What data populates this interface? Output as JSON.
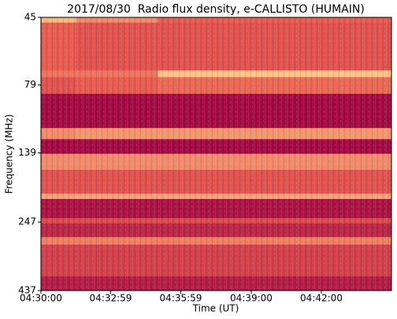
{
  "chart_data": {
    "type": "spectrogram",
    "title": "2017/08/30  Radio flux density, e-CALLISTO (HUMAIN)",
    "x_label": "Time (UT)",
    "y_label": "Frequency (MHz)",
    "xlim": [
      "04:30:00",
      "04:45:00"
    ],
    "xticks": [
      "04:30:00",
      "04:32:59",
      "04:35:59",
      "04:39:00",
      "04:42:00"
    ],
    "ylim": [
      45,
      437
    ],
    "yticks": [
      45,
      79,
      139,
      247,
      437
    ],
    "y_log": true,
    "y_inverted": true,
    "time_edges": [
      "04:30:00",
      "04:31:30",
      "04:35:00",
      "04:45:00"
    ],
    "frequency_edges": [
      45,
      47,
      70,
      74,
      85,
      113,
      124,
      140,
      160,
      195,
      204,
      239,
      250,
      280,
      298,
      388,
      437
    ],
    "intensity": [
      [
        0.9,
        0.7,
        0.5
      ],
      [
        0.5,
        0.45,
        0.45
      ],
      [
        0.6,
        0.6,
        0.95
      ],
      [
        0.45,
        0.5,
        0.55
      ],
      [
        0.05,
        0.05,
        0.05
      ],
      [
        0.7,
        0.75,
        0.75
      ],
      [
        0.05,
        0.05,
        0.05
      ],
      [
        0.7,
        0.7,
        0.7
      ],
      [
        0.45,
        0.45,
        0.45
      ],
      [
        0.8,
        0.8,
        0.8
      ],
      [
        0.1,
        0.1,
        0.1
      ],
      [
        0.4,
        0.4,
        0.4
      ],
      [
        0.2,
        0.2,
        0.2
      ],
      [
        0.65,
        0.65,
        0.65
      ],
      [
        0.35,
        0.35,
        0.35
      ],
      [
        0.15,
        0.15,
        0.15
      ]
    ],
    "colormap": [
      "#9b0041",
      "#e85a4f",
      "#fbd08a"
    ]
  }
}
